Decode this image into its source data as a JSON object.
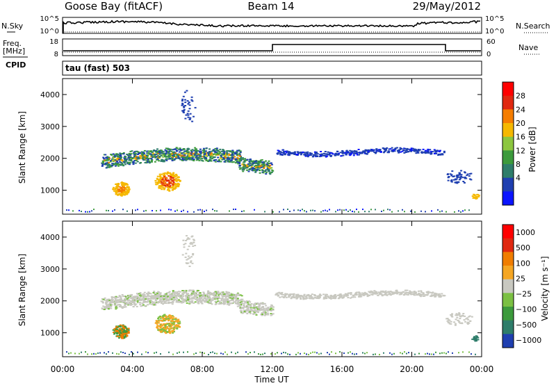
{
  "header": {
    "station": "Goose Bay (fitACF)",
    "beam": "Beam 14",
    "date": "29/May/2012"
  },
  "top_panel": {
    "left_label": "N.Sky",
    "left_ticks": [
      "10^5",
      "10^0"
    ],
    "right_label": "N.Search",
    "right_ticks": [
      "10^5",
      "10^0"
    ]
  },
  "freq_panel": {
    "left_label_1": "Freq.",
    "left_label_2": "[MHz]",
    "left_ticks": [
      "18",
      "8"
    ],
    "right_label": "Nave",
    "right_ticks": [
      "60",
      "0"
    ]
  },
  "cpid": {
    "label": "CPID",
    "value": "tau (fast) 503"
  },
  "colors": {
    "power": [
      "#0a14ff",
      "#1f3fb0",
      "#2e7d6a",
      "#3c9a3c",
      "#8cc63f",
      "#f5b800",
      "#f57d00",
      "#e02810",
      "#ff0000"
    ],
    "velocity": [
      "#1f3fb0",
      "#2e7d6a",
      "#3c9a3c",
      "#7bc043",
      "#c8c8c0",
      "#f5a623",
      "#f07d00",
      "#e02810",
      "#ff0000"
    ]
  },
  "chart_data": [
    {
      "type": "heatmap",
      "name": "power",
      "ylabel": "Slant Range [km]",
      "yticks": [
        "1000",
        "2000",
        "3000",
        "4000"
      ],
      "ylim": [
        250,
        4500
      ],
      "xlim": [
        0,
        24
      ],
      "colorbar_label": "Power [dB]",
      "colorbar_ticks": [
        "28",
        "24",
        "20",
        "16",
        "12",
        "8",
        "4"
      ]
    },
    {
      "type": "heatmap",
      "name": "velocity",
      "ylabel": "Slant Range [km]",
      "yticks": [
        "1000",
        "2000",
        "3000",
        "4000"
      ],
      "ylim": [
        250,
        4500
      ],
      "xlim": [
        0,
        24
      ],
      "xticks": [
        "00:00",
        "04:00",
        "08:00",
        "12:00",
        "16:00",
        "20:00",
        "00:00"
      ],
      "xlabel": "Time UT",
      "colorbar_label": "Velocity [m s⁻¹]",
      "colorbar_ticks": [
        "1000",
        "500",
        "100",
        "25",
        "−25",
        "−100",
        "−500",
        "−1000"
      ]
    }
  ]
}
